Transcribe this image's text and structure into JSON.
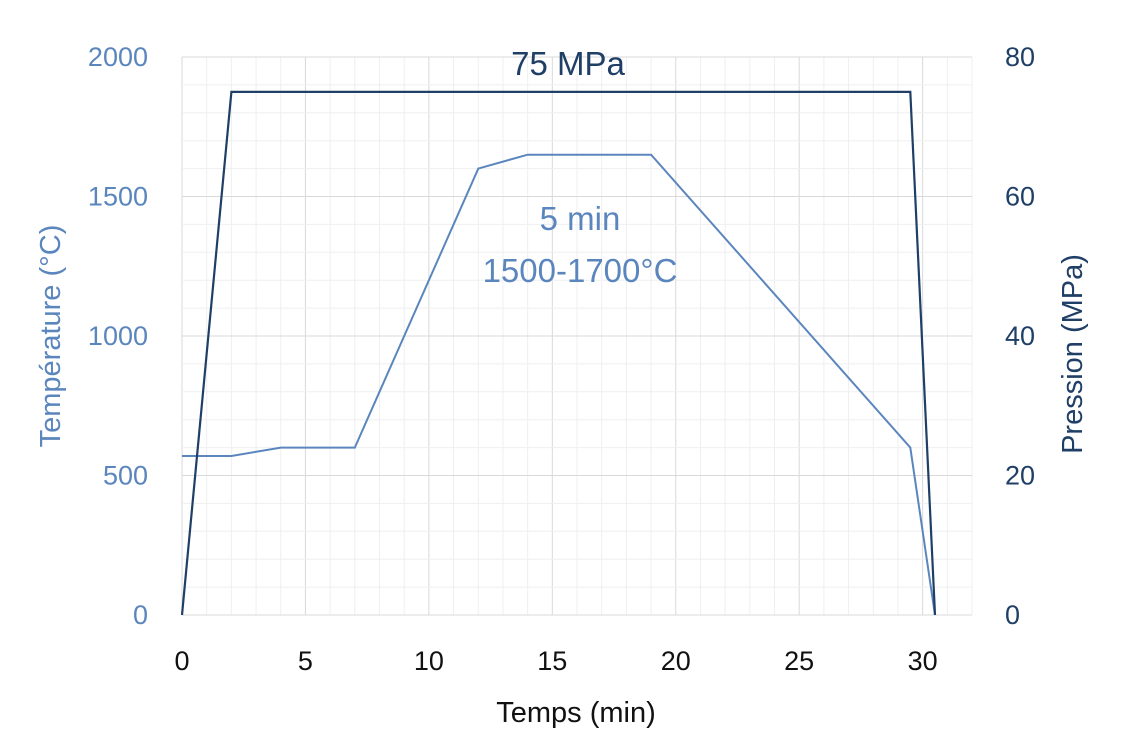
{
  "chart_data": {
    "type": "line",
    "x_axis": {
      "label": "Temps (min)",
      "range": [
        0,
        32
      ],
      "ticks": [
        0,
        5,
        10,
        15,
        20,
        25,
        30
      ],
      "tick_labels": [
        "0",
        "5",
        "10",
        "15",
        "20",
        "25",
        "30"
      ]
    },
    "y_axis_left": {
      "label": "Température (°C)",
      "range": [
        0,
        2000
      ],
      "ticks": [
        0,
        500,
        1000,
        1500,
        2000
      ],
      "tick_labels": [
        "0",
        "500",
        "1000",
        "1500",
        "2000"
      ]
    },
    "y_axis_right": {
      "label": "Pression (MPa)",
      "range": [
        0,
        80
      ],
      "ticks": [
        0,
        20,
        40,
        60,
        80
      ],
      "tick_labels": [
        "0",
        "20",
        "40",
        "60",
        "80"
      ]
    },
    "grid": true,
    "series": [
      {
        "axis": "left",
        "color": "#5b86bd",
        "points": [
          [
            0,
            570
          ],
          [
            2,
            570
          ],
          [
            4,
            600
          ],
          [
            7,
            600
          ],
          [
            12,
            1600
          ],
          [
            14,
            1650
          ],
          [
            19,
            1650
          ],
          [
            29.5,
            600
          ],
          [
            30.5,
            0
          ]
        ]
      },
      {
        "axis": "right",
        "color": "#1f3f66",
        "points": [
          [
            0,
            0
          ],
          [
            2,
            75
          ],
          [
            29.5,
            75
          ],
          [
            30.5,
            0
          ]
        ]
      }
    ],
    "annotations": {
      "pressure": "75 MPa",
      "hold_time": "5 min",
      "temperature_range": "1500-1700°C"
    }
  }
}
